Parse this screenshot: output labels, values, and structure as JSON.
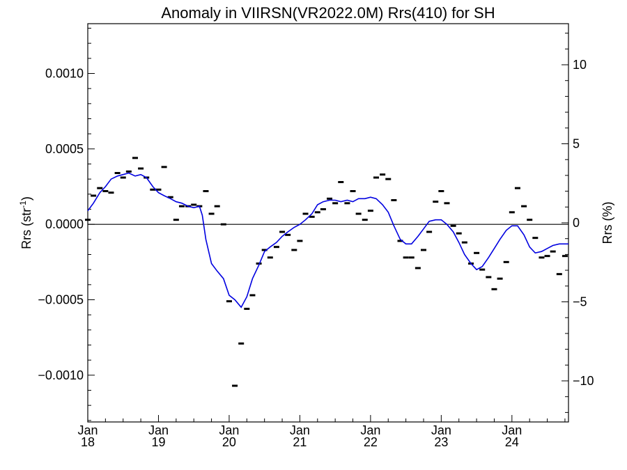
{
  "chart_data": {
    "type": "scatter",
    "title": "Anomaly in VIIRSN(VR2022.0M) Rrs(410) for SH",
    "ylabel_left": "Rrs (str",
    "ylabel_left_sup": "-1",
    "ylabel_left_close": ")",
    "ylabel_right": "Rrs (%)",
    "xlim": [
      2018.0,
      2024.8
    ],
    "ylim": [
      -0.00131,
      0.00133
    ],
    "ylim_right": [
      -12.6,
      12.6
    ],
    "x_ticks": [
      {
        "value": 2018,
        "month": "Jan",
        "year": "18"
      },
      {
        "value": 2019,
        "month": "Jan",
        "year": "19"
      },
      {
        "value": 2020,
        "month": "Jan",
        "year": "20"
      },
      {
        "value": 2021,
        "month": "Jan",
        "year": "21"
      },
      {
        "value": 2022,
        "month": "Jan",
        "year": "22"
      },
      {
        "value": 2023,
        "month": "Jan",
        "year": "23"
      },
      {
        "value": 2024,
        "month": "Jan",
        "year": "24"
      }
    ],
    "y_ticks_left": [
      {
        "value": 0.001,
        "label": "0.0010"
      },
      {
        "value": 0.0005,
        "label": "0.0005"
      },
      {
        "value": 0.0,
        "label": "0.0000"
      },
      {
        "value": -0.0005,
        "label": "−0.0005"
      },
      {
        "value": -0.001,
        "label": "−0.0010"
      }
    ],
    "y_ticks_right": [
      {
        "value": 10,
        "label": "10"
      },
      {
        "value": 5,
        "label": "5"
      },
      {
        "value": 0,
        "label": "0"
      },
      {
        "value": -5,
        "label": "−5"
      },
      {
        "value": -10,
        "label": "−10"
      }
    ],
    "zero_line": true,
    "grid": false,
    "series": [
      {
        "kind": "points",
        "color": "#000000",
        "x": [
          2018.0,
          2018.08,
          2018.17,
          2018.25,
          2018.33,
          2018.42,
          2018.5,
          2018.58,
          2018.67,
          2018.75,
          2018.83,
          2018.92,
          2019.0,
          2019.08,
          2019.17,
          2019.25,
          2019.33,
          2019.42,
          2019.5,
          2019.58,
          2019.67,
          2019.75,
          2019.83,
          2019.92,
          2020.0,
          2020.08,
          2020.17,
          2020.25,
          2020.33,
          2020.42,
          2020.5,
          2020.58,
          2020.67,
          2020.75,
          2020.83,
          2020.92,
          2021.0,
          2021.08,
          2021.17,
          2021.25,
          2021.33,
          2021.42,
          2021.5,
          2021.58,
          2021.67,
          2021.75,
          2021.83,
          2021.92,
          2022.0,
          2022.08,
          2022.17,
          2022.25,
          2022.33,
          2022.42,
          2022.5,
          2022.58,
          2022.67,
          2022.75,
          2022.83,
          2022.92,
          2023.0,
          2023.08,
          2023.17,
          2023.25,
          2023.33,
          2023.42,
          2023.5,
          2023.58,
          2023.67,
          2023.75,
          2023.83,
          2023.92,
          2024.0,
          2024.08,
          2024.17,
          2024.25,
          2024.33,
          2024.42,
          2024.5,
          2024.58,
          2024.67,
          2024.75,
          2024.83
        ],
        "y": [
          3e-05,
          0.00019,
          0.00024,
          0.00022,
          0.00021,
          0.00034,
          0.00031,
          0.00035,
          0.00044,
          0.00037,
          0.00031,
          0.00023,
          0.00023,
          0.00038,
          0.00018,
          3e-05,
          0.00012,
          0.00012,
          0.00013,
          0.00012,
          0.00022,
          7e-05,
          0.00012,
          0.0,
          -0.00051,
          -0.00107,
          -0.00079,
          -0.00056,
          -0.00047,
          -0.00026,
          -0.00017,
          -0.00022,
          -0.00015,
          -5e-05,
          -7e-05,
          -0.00017,
          -0.00011,
          7e-05,
          5e-05,
          8e-05,
          0.0001,
          0.00017,
          0.00014,
          0.00028,
          0.00014,
          0.00022,
          7e-05,
          3e-05,
          9e-05,
          0.00031,
          0.00033,
          0.0003,
          0.00016,
          -0.00011,
          -0.00022,
          -0.00022,
          -0.00029,
          -0.00017,
          -5e-05,
          0.00015,
          0.00022,
          0.00014,
          -1e-05,
          -6e-05,
          -0.00012,
          -0.00026,
          -0.00019,
          -0.0003,
          -0.00035,
          -0.00043,
          -0.00036,
          -0.00025,
          8e-05,
          0.00024,
          0.00012,
          3e-05,
          -9e-05,
          -0.00022,
          -0.00021,
          -0.00018,
          -0.00033,
          -0.00021,
          -9e-05
        ]
      },
      {
        "kind": "line",
        "color": "#0000e0",
        "x": [
          2018.0,
          2018.08,
          2018.17,
          2018.25,
          2018.33,
          2018.42,
          2018.5,
          2018.58,
          2018.67,
          2018.75,
          2018.83,
          2018.92,
          2019.0,
          2019.08,
          2019.17,
          2019.25,
          2019.33,
          2019.42,
          2019.5,
          2019.58,
          2019.62,
          2019.67,
          2019.75,
          2019.83,
          2019.92,
          2020.0,
          2020.08,
          2020.17,
          2020.25,
          2020.33,
          2020.42,
          2020.5,
          2020.58,
          2020.67,
          2020.75,
          2020.83,
          2020.92,
          2021.0,
          2021.08,
          2021.17,
          2021.25,
          2021.33,
          2021.42,
          2021.5,
          2021.58,
          2021.67,
          2021.75,
          2021.83,
          2021.92,
          2022.0,
          2022.08,
          2022.17,
          2022.25,
          2022.33,
          2022.42,
          2022.5,
          2022.58,
          2022.67,
          2022.75,
          2022.83,
          2022.92,
          2023.0,
          2023.08,
          2023.17,
          2023.25,
          2023.33,
          2023.42,
          2023.5,
          2023.58,
          2023.67,
          2023.75,
          2023.83,
          2023.92,
          2024.0,
          2024.08,
          2024.17,
          2024.25,
          2024.33,
          2024.42,
          2024.5,
          2024.58,
          2024.67,
          2024.75,
          2024.8
        ],
        "y": [
          9e-05,
          0.00014,
          0.00021,
          0.00025,
          0.0003,
          0.00032,
          0.00033,
          0.00034,
          0.00032,
          0.00033,
          0.00031,
          0.00025,
          0.00021,
          0.00019,
          0.00017,
          0.00015,
          0.00014,
          0.00012,
          0.00011,
          0.00012,
          6e-05,
          -0.0001,
          -0.00026,
          -0.00031,
          -0.00036,
          -0.00047,
          -0.0005,
          -0.00055,
          -0.00048,
          -0.00036,
          -0.00027,
          -0.00018,
          -0.00015,
          -0.00012,
          -8e-05,
          -5e-05,
          -2e-05,
          0.0,
          3e-05,
          7e-05,
          0.00013,
          0.00015,
          0.00016,
          0.00016,
          0.00015,
          0.00016,
          0.00015,
          0.00017,
          0.00017,
          0.00018,
          0.00017,
          0.00013,
          8e-05,
          -1e-05,
          -0.0001,
          -0.00013,
          -0.00013,
          -8e-05,
          -3e-05,
          2e-05,
          3e-05,
          3e-05,
          0.0,
          -5e-05,
          -0.00012,
          -0.0002,
          -0.00026,
          -0.0003,
          -0.00028,
          -0.00022,
          -0.00016,
          -0.0001,
          -4e-05,
          -1e-05,
          -1e-05,
          -7e-05,
          -0.00015,
          -0.00019,
          -0.00018,
          -0.00016,
          -0.00014,
          -0.00013,
          -0.00013,
          -0.00013
        ]
      }
    ]
  }
}
